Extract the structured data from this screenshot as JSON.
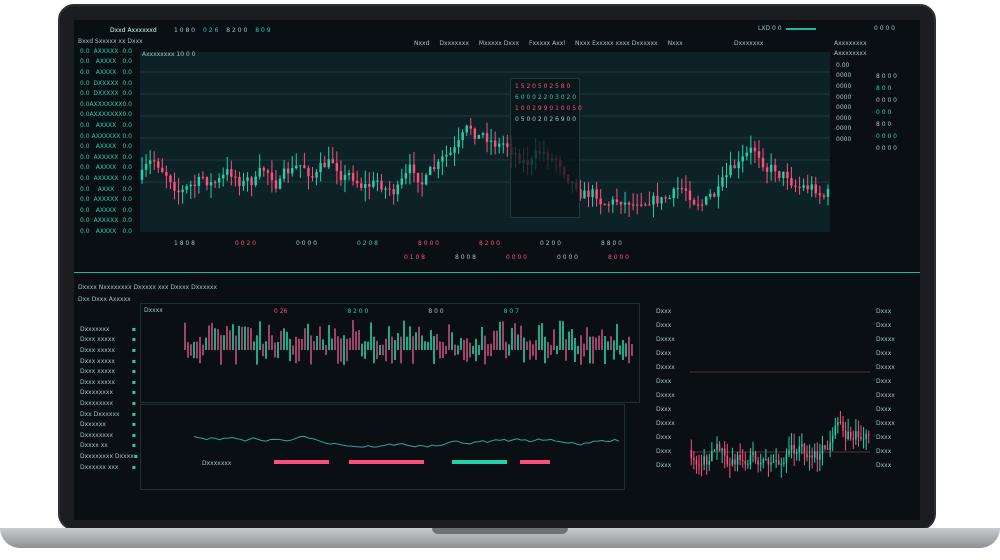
{
  "header": {
    "title": "Dxxd Axxxxxxd",
    "tabs": [
      "1 0 8 0",
      "0 2 6",
      "8 2 0 0",
      "8 0 9"
    ],
    "menu": [
      "Nxxd",
      "Dxxxxxxx",
      "Mxxxxx Dxxx",
      "Fxxxxx Axxl",
      "Nxxx Exxxxx xxxx Dxxxxxx",
      "Nxxx"
    ],
    "right": [
      "Dxxxxxxx",
      "Axxxxxxxx",
      "LXD 0 0",
      "0 0 0 0"
    ]
  },
  "watchlist": {
    "title": "Bxxd Sxxxxx xx Dxxx",
    "items": [
      {
        "s": "0.0",
        "n": "AXXXXX",
        "v": "0.0"
      },
      {
        "s": "0.0",
        "n": "AXXXX",
        "v": "0.0"
      },
      {
        "s": "0.0",
        "n": "AXXXX",
        "v": "0.0"
      },
      {
        "s": "0.0",
        "n": "DXXXXX",
        "v": "0.0"
      },
      {
        "s": "0.0",
        "n": "DXXXXX",
        "v": "0.0"
      },
      {
        "s": "0.0",
        "n": "AXXXXXXX",
        "v": "0.0"
      },
      {
        "s": "0.0",
        "n": "AXXXXXXX",
        "v": "0.0"
      },
      {
        "s": "0.0",
        "n": "AXXXX",
        "v": "0.0"
      },
      {
        "s": "0.0",
        "n": "AXXXXXX",
        "v": "0.0"
      },
      {
        "s": "0.0",
        "n": "AXXXX",
        "v": "0.0"
      },
      {
        "s": "0.0",
        "n": "AXXXXX",
        "v": "0.0"
      },
      {
        "s": "0.0",
        "n": "AXXXX",
        "v": "0.0"
      },
      {
        "s": "0.0",
        "n": "AXXXXX",
        "v": "0.0"
      },
      {
        "s": "0.0",
        "n": "AXXX",
        "v": "0.0"
      },
      {
        "s": "0.0",
        "n": "AXXXXX",
        "v": "0.0"
      },
      {
        "s": "0.0",
        "n": "AXXXX",
        "v": "0.0"
      },
      {
        "s": "0.0",
        "n": "AXXXXX",
        "v": "0.0"
      },
      {
        "s": "0.0",
        "n": "AXXXX",
        "v": "0.0"
      }
    ]
  },
  "chart": {
    "symbol": "Axxxxxxxx 10 0 0",
    "overlay": [
      "1 5 2 0 5 0 2 5 8 0",
      "6 0 0 0 2 2 0 3 0 2 0",
      "1 0 0 2 9 9 0 1 0 0 5 0",
      "0 5 0 0 2 0 2 6 9 0 0"
    ],
    "bottom_row": [
      "1 8 0 8",
      "0 0 2 0",
      "0 0 0 0",
      "0 2 0 8",
      "8 0 0 0",
      "8 2 0 0",
      "0 2 0 0",
      "8 8 0 0"
    ],
    "bottom_row2": [
      "0 1 0 8",
      "8 0 0 8",
      "0 0 0 0",
      "0 0 0 0",
      "8 0 0 0"
    ]
  },
  "right_panel": {
    "title": "Axxxxxxxx",
    "items": [
      "0.00",
      "0000",
      "0000",
      "0000",
      "0000",
      "0000",
      "0000",
      "0000"
    ],
    "side": [
      "8 0 0 0",
      "8 0 0",
      "0 0 0 0",
      "0 0 0",
      "8 0 0",
      "0 0 0 0",
      "0 0 0 0"
    ]
  },
  "lower": {
    "title": "Dxxxx Nxxxxxxxx Dxxxxx xxx Dxxxx Dxxxxxx",
    "sub": "Dxx Dxxx Axxxxx",
    "volume_title": "Dxxxx",
    "stats": [
      "0 26",
      "8 2 0 0",
      "8 0 0",
      "8 0 7"
    ],
    "left_items": [
      "Dxxxxxxx",
      "Dxxx xxxxx",
      "Dxxx xxxxx",
      "Dxxx xxxxx",
      "Dxxx xxxxx",
      "Dxxx xxxxx",
      "Dxxxxxxxx",
      "Dxxxxxxxx",
      "Dxx Dxxxxxx",
      "Dxxxxxx",
      "Dxxxxxxxx",
      "Dxxxx xx",
      "Dxxxxxxxx Dxxxx",
      "Dxxxxxx xxx"
    ],
    "line_title": "Dxxxxxxx",
    "mid_items": [
      "Dxxx",
      "Dxxx",
      "Dxxxx",
      "Dxxx",
      "Dxxxx",
      "Dxxx",
      "Dxxxx",
      "Dxxx",
      "Dxxxx",
      "Dxxx",
      "Dxxx",
      "Dxxx"
    ]
  },
  "colors": {
    "up": "#23d1a8",
    "down": "#ff4d7d",
    "bg": "#0a0f14",
    "accent": "#1fb5a5"
  }
}
